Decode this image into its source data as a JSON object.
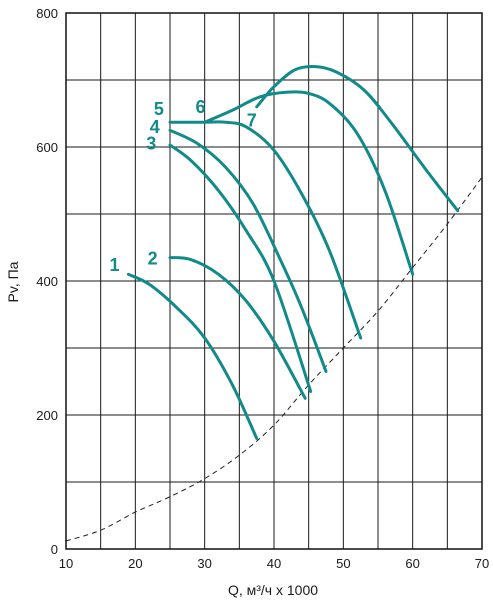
{
  "chart_data": {
    "type": "line",
    "title": "",
    "xlabel": "Q, м³/ч x 1000",
    "ylabel": "Pv, Па",
    "xlim": [
      10,
      70
    ],
    "ylim": [
      0,
      800
    ],
    "x_ticks": [
      10,
      20,
      30,
      40,
      50,
      60,
      70
    ],
    "y_ticks": [
      0,
      200,
      400,
      600,
      800
    ],
    "x_tick_labels": [
      "10",
      "20",
      "30",
      "40",
      "50",
      "60",
      "70"
    ],
    "y_tick_labels": [
      "0",
      "200",
      "400",
      "600",
      "800"
    ],
    "grid": true,
    "grid_step_x": 5,
    "grid_step_y": 100,
    "curve_color": "#138a8a",
    "system_line_color": "#222222",
    "series": [
      {
        "name": "1",
        "label_at": [
          17,
          422
        ],
        "x": [
          19,
          22,
          26,
          30,
          34,
          37.5
        ],
        "y": [
          410,
          395,
          360,
          315,
          245,
          165
        ]
      },
      {
        "name": "2",
        "label_at": [
          22.5,
          432
        ],
        "x": [
          25,
          28,
          32,
          36,
          40,
          44.5
        ],
        "y": [
          435,
          432,
          410,
          370,
          310,
          225
        ]
      },
      {
        "name": "3",
        "label_at": [
          22.3,
          603
        ],
        "x": [
          25,
          28,
          32,
          36,
          40,
          45.3
        ],
        "y": [
          603,
          580,
          535,
          475,
          400,
          235
        ]
      },
      {
        "name": "4",
        "label_at": [
          22.8,
          628
        ],
        "x": [
          25,
          29,
          33,
          37,
          41,
          44,
          47.5
        ],
        "y": [
          625,
          605,
          570,
          515,
          430,
          360,
          265
        ]
      },
      {
        "name": "5",
        "label_at": [
          23.4,
          655
        ],
        "x": [
          25,
          30,
          33,
          36,
          40,
          44,
          48,
          52.5
        ],
        "y": [
          637,
          637,
          637,
          630,
          595,
          530,
          445,
          315
        ]
      },
      {
        "name": "6",
        "label_at": [
          29.4,
          658
        ],
        "x": [
          30,
          34,
          38,
          42,
          45,
          48,
          52,
          56,
          60
        ],
        "y": [
          637,
          655,
          675,
          682,
          680,
          665,
          620,
          535,
          410
        ]
      },
      {
        "name": "7",
        "label_at": [
          36.8,
          638
        ],
        "x": [
          37.5,
          40,
          43,
          46,
          49,
          53,
          57,
          62,
          66.5
        ],
        "y": [
          660,
          690,
          715,
          720,
          712,
          685,
          635,
          565,
          505
        ]
      }
    ],
    "system_curve": {
      "name": "",
      "style": "dashed",
      "x": [
        10,
        15,
        20,
        25,
        30,
        35,
        40,
        45,
        50,
        55,
        60,
        65,
        70
      ],
      "y": [
        12,
        28,
        55,
        78,
        105,
        140,
        185,
        245,
        300,
        355,
        420,
        485,
        555
      ]
    }
  }
}
